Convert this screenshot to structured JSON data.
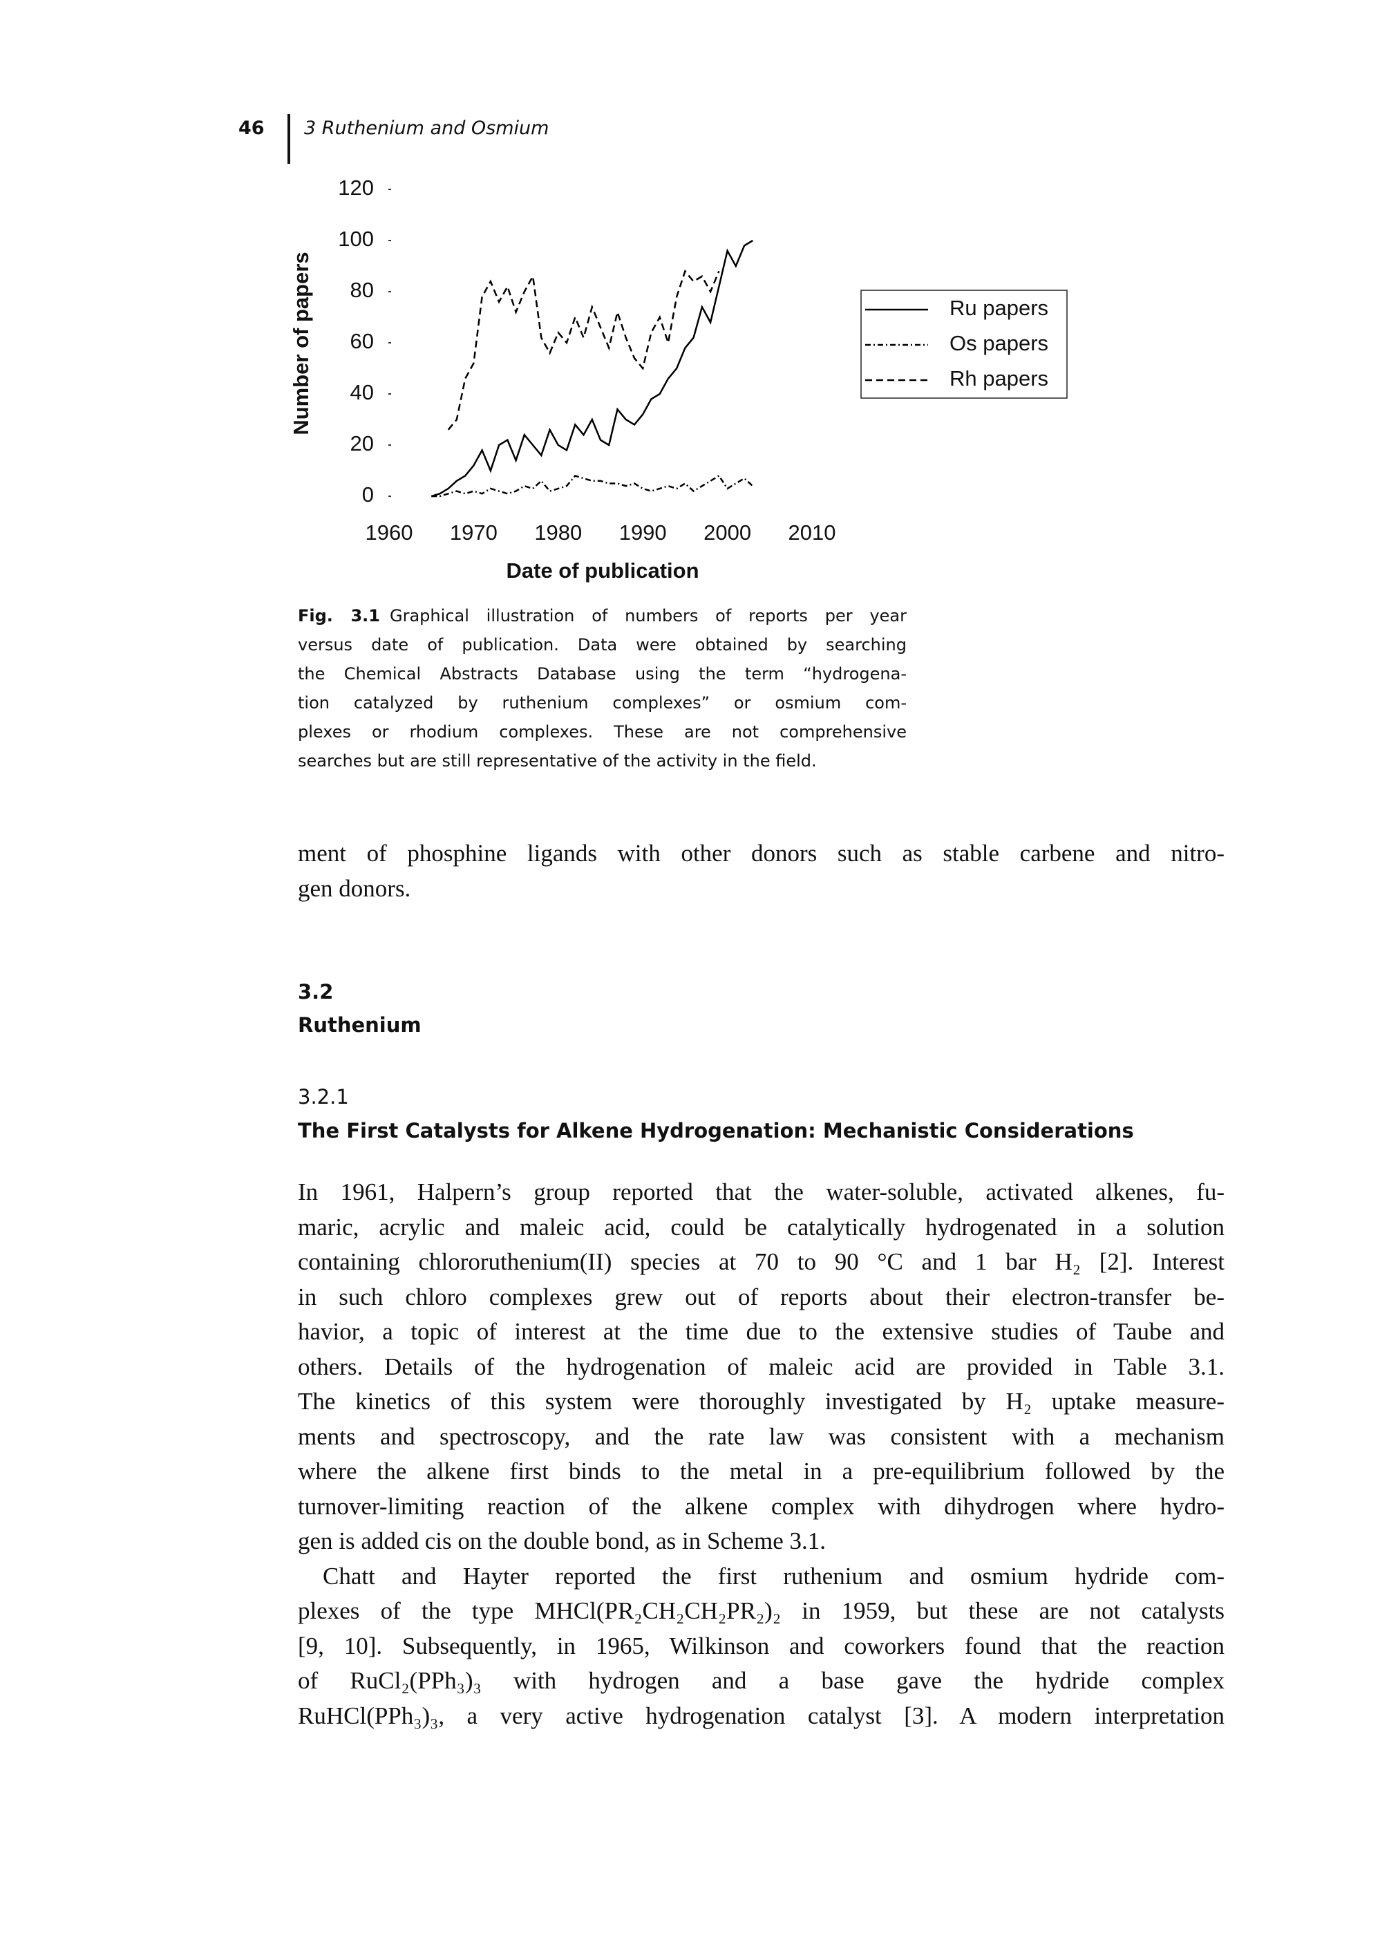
{
  "header": {
    "page_number": "46",
    "title": "3 Ruthenium and Osmium"
  },
  "chart_data": {
    "type": "line",
    "xlabel": "Date of publication",
    "ylabel": "Number of papers",
    "xlim": [
      1960,
      2010
    ],
    "ylim": [
      0,
      120
    ],
    "xticks": [
      1960,
      1970,
      1980,
      1990,
      2000,
      2010
    ],
    "yticks": [
      0,
      20,
      40,
      60,
      80,
      100,
      120
    ],
    "x": [
      1965,
      1966,
      1967,
      1968,
      1969,
      1970,
      1971,
      1972,
      1973,
      1974,
      1975,
      1976,
      1977,
      1978,
      1979,
      1980,
      1981,
      1982,
      1983,
      1984,
      1985,
      1986,
      1987,
      1988,
      1989,
      1990,
      1991,
      1992,
      1993,
      1994,
      1995,
      1996,
      1997,
      1998,
      1999,
      2000,
      2001,
      2002,
      2003
    ],
    "series": [
      {
        "name": "Ru papers",
        "color": "#000000",
        "linestyle": "solid",
        "values": [
          0,
          1,
          3,
          6,
          8,
          12,
          18,
          10,
          20,
          22,
          14,
          24,
          20,
          16,
          26,
          20,
          18,
          28,
          24,
          30,
          22,
          20,
          34,
          30,
          28,
          32,
          38,
          40,
          46,
          50,
          58,
          62,
          74,
          68,
          82,
          96,
          90,
          98,
          100
        ]
      },
      {
        "name": "Os papers",
        "color": "#000000",
        "linestyle": "dashdot",
        "values": [
          0,
          0,
          1,
          2,
          1,
          2,
          1,
          3,
          2,
          1,
          2,
          4,
          3,
          6,
          2,
          3,
          4,
          8,
          7,
          6,
          6,
          5,
          5,
          4,
          5,
          3,
          2,
          3,
          4,
          3,
          5,
          2,
          4,
          6,
          8,
          3,
          5,
          7,
          4
        ]
      },
      {
        "name": "Rh papers",
        "color": "#000000",
        "linestyle": "dashed",
        "values": [
          null,
          null,
          26,
          30,
          46,
          52,
          78,
          84,
          76,
          82,
          72,
          80,
          86,
          62,
          56,
          64,
          60,
          70,
          62,
          74,
          66,
          58,
          72,
          62,
          54,
          50,
          64,
          70,
          60,
          78,
          88,
          84,
          86,
          80,
          88,
          null,
          null,
          null,
          null
        ]
      }
    ],
    "legend": "right"
  },
  "caption": {
    "label": "Fig. 3.1",
    "lines": [
      "Graphical illustration of numbers of reports per year",
      "versus date of publication. Data were obtained by searching",
      "the Chemical Abstracts Database using the term “hydrogena-",
      "tion catalyzed by ruthenium complexes” or osmium com-",
      "plexes or rhodium complexes. These are not comprehensive",
      "searches but are still representative of the activity in the field."
    ]
  },
  "paragraphs": [
    [
      "ment of phosphine ligands with other donors such as stable carbene and nitro-",
      "gen donors."
    ]
  ],
  "section": {
    "number": "3.2",
    "title": "Ruthenium"
  },
  "subsection": {
    "number": "3.2.1",
    "title": "The First Catalysts for Alkene Hydrogenation: Mechanistic Considerations"
  },
  "body": [
    [
      "In 1961, Halpern’s group reported that the water-soluble, activated alkenes, fu-",
      "maric, acrylic and maleic acid, could be catalytically hydrogenated in a solution",
      "containing chlororuthenium(II) species at 70 to 90 °C and 1 bar H₂ [2]. Interest",
      "in such chloro complexes grew out of reports about their electron-transfer be-",
      "havior, a topic of interest at the time due to the extensive studies of Taube and",
      "others. Details of the hydrogenation of maleic acid are provided in Table 3.1.",
      "The kinetics of this system were thoroughly investigated by H₂ uptake measure-",
      "ments and spectroscopy, and the rate law was consistent with a mechanism",
      "where the alkene first binds to the metal in a pre-equilibrium followed by the",
      "turnover-limiting reaction of the alkene complex with dihydrogen where hydro-",
      "gen is added cis on the double bond, as in Scheme 3.1."
    ],
    [
      "Chatt and Hayter reported the first ruthenium and osmium hydride com-",
      "plexes of the type MHCl(PR₂CH₂CH₂PR₂)₂ in 1959, but these are not catalysts",
      "[9, 10]. Subsequently, in 1965, Wilkinson and coworkers found that the reaction",
      "of RuCl₂(PPh₃)₃ with hydrogen and a base gave the hydride complex",
      "RuHCl(PPh₃)₃, a very active hydrogenation catalyst [3]. A modern interpretation"
    ]
  ]
}
